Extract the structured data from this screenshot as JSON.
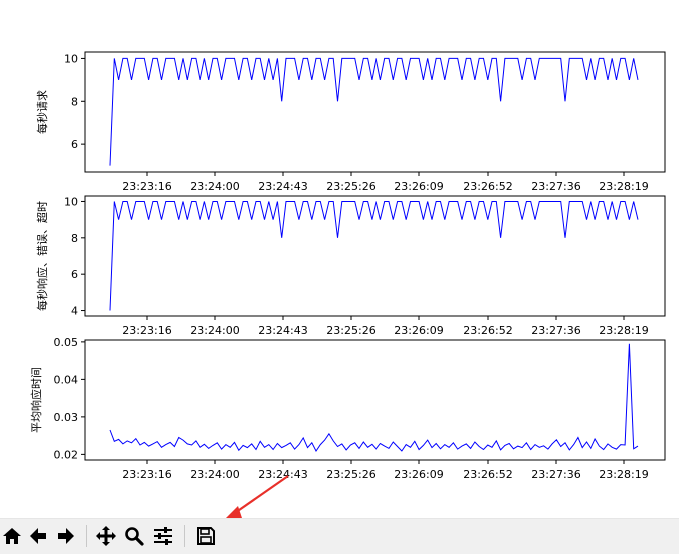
{
  "chart_data": [
    {
      "type": "line",
      "ylabel": "每秒请求",
      "yticks": [
        6,
        8,
        10
      ],
      "ylim": [
        4.7,
        10.3
      ],
      "x_tick_labels": [
        "23:23:16",
        "23:24:00",
        "23:24:43",
        "23:25:26",
        "23:26:09",
        "23:26:52",
        "23:27:36",
        "23:28:19"
      ],
      "color": "#0000ff",
      "series": [
        {
          "values": [
            5,
            10,
            9,
            10,
            10,
            9,
            10,
            10,
            10,
            9,
            10,
            10,
            9,
            10,
            10,
            10,
            9,
            10,
            9,
            10,
            10,
            9,
            10,
            9,
            10,
            10,
            9,
            10,
            10,
            10,
            9,
            10,
            10,
            9,
            10,
            10,
            9,
            10,
            9,
            10,
            8,
            10,
            10,
            10,
            9,
            10,
            10,
            9,
            10,
            10,
            9,
            10,
            10,
            8,
            10,
            10,
            10,
            10,
            9,
            10,
            10,
            9,
            10,
            9,
            10,
            10,
            9,
            10,
            10,
            9,
            10,
            10,
            10,
            9,
            10,
            9,
            10,
            10,
            9,
            10,
            10,
            10,
            9,
            10,
            10,
            9,
            10,
            10,
            9,
            10,
            10,
            8,
            10,
            10,
            10,
            10,
            9,
            10,
            10,
            9,
            10,
            10,
            10,
            10,
            10,
            10,
            8,
            10,
            10,
            10,
            10,
            9,
            10,
            9,
            10,
            10,
            9,
            10,
            9,
            10,
            10,
            9,
            10,
            9
          ]
        }
      ]
    },
    {
      "type": "line",
      "ylabel": "每秒响应、错误、超时",
      "yticks": [
        4,
        6,
        8,
        10
      ],
      "ylim": [
        3.7,
        10.3
      ],
      "x_tick_labels": [
        "23:23:16",
        "23:24:00",
        "23:24:43",
        "23:25:26",
        "23:26:09",
        "23:26:52",
        "23:27:36",
        "23:28:19"
      ],
      "color": "#0000ff",
      "series": [
        {
          "values": [
            4,
            10,
            9,
            10,
            10,
            9,
            10,
            10,
            10,
            9,
            10,
            10,
            9,
            10,
            10,
            10,
            9,
            10,
            9,
            10,
            10,
            9,
            10,
            9,
            10,
            10,
            9,
            10,
            10,
            10,
            9,
            10,
            10,
            9,
            10,
            10,
            9,
            10,
            9,
            10,
            8,
            10,
            10,
            10,
            9,
            10,
            10,
            9,
            10,
            10,
            9,
            10,
            10,
            8,
            10,
            10,
            10,
            10,
            9,
            10,
            10,
            9,
            10,
            9,
            10,
            10,
            9,
            10,
            10,
            9,
            10,
            10,
            10,
            9,
            10,
            9,
            10,
            10,
            9,
            10,
            10,
            10,
            9,
            10,
            10,
            9,
            10,
            10,
            9,
            10,
            10,
            8,
            10,
            10,
            10,
            10,
            9,
            10,
            10,
            9,
            10,
            10,
            10,
            10,
            10,
            10,
            8,
            10,
            10,
            10,
            10,
            9,
            10,
            9,
            10,
            10,
            9,
            10,
            9,
            10,
            10,
            9,
            10,
            9
          ]
        }
      ]
    },
    {
      "type": "line",
      "ylabel": "平均响应时间",
      "yticks": [
        0.02,
        0.03,
        0.04,
        0.05
      ],
      "ytick_labels": [
        "0.02",
        "0.03",
        "0.04",
        "0.05"
      ],
      "ylim": [
        0.0185,
        0.0505
      ],
      "x_tick_labels": [
        "23:23:16",
        "23:24:00",
        "23:24:43",
        "23:25:26",
        "23:26:09",
        "23:26:52",
        "23:27:36",
        "23:28:19"
      ],
      "color": "#0000ff",
      "series": [
        {
          "values": [
            0.0265,
            0.0235,
            0.024,
            0.0228,
            0.0236,
            0.0231,
            0.0242,
            0.0225,
            0.0232,
            0.0222,
            0.0228,
            0.0234,
            0.0219,
            0.0226,
            0.0232,
            0.0221,
            0.0245,
            0.0238,
            0.0228,
            0.0225,
            0.0236,
            0.0219,
            0.0227,
            0.0216,
            0.0224,
            0.0231,
            0.0214,
            0.0226,
            0.0219,
            0.0232,
            0.0211,
            0.0224,
            0.0218,
            0.0228,
            0.0213,
            0.0235,
            0.0219,
            0.0226,
            0.0213,
            0.0229,
            0.0218,
            0.0224,
            0.0231,
            0.0214,
            0.0226,
            0.0244,
            0.0218,
            0.0231,
            0.0209,
            0.0226,
            0.0238,
            0.0255,
            0.0236,
            0.0221,
            0.0228,
            0.0212,
            0.0225,
            0.0231,
            0.0216,
            0.0233,
            0.0219,
            0.0227,
            0.0214,
            0.0229,
            0.0222,
            0.0216,
            0.0233,
            0.0221,
            0.0209,
            0.0226,
            0.0219,
            0.0235,
            0.0213,
            0.0224,
            0.0238,
            0.0218,
            0.0229,
            0.0215,
            0.0226,
            0.0219,
            0.0231,
            0.0214,
            0.0222,
            0.0228,
            0.0216,
            0.0233,
            0.0221,
            0.0213,
            0.0225,
            0.0219,
            0.0236,
            0.0212,
            0.0224,
            0.0229,
            0.0215,
            0.0222,
            0.0218,
            0.0231,
            0.0213,
            0.0226,
            0.0219,
            0.0223,
            0.0214,
            0.0228,
            0.0239,
            0.0221,
            0.0231,
            0.0212,
            0.0226,
            0.0245,
            0.0218,
            0.0233,
            0.0216,
            0.0241,
            0.0222,
            0.0213,
            0.0228,
            0.0219,
            0.0214,
            0.0226,
            0.0225,
            0.0495,
            0.0215,
            0.0222
          ]
        }
      ]
    }
  ],
  "toolbar": {
    "buttons": [
      {
        "name": "home-button",
        "icon": "home-icon"
      },
      {
        "name": "back-button",
        "icon": "arrow-left-icon"
      },
      {
        "name": "forward-button",
        "icon": "arrow-right-icon"
      },
      {
        "name": "pan-button",
        "icon": "move-icon"
      },
      {
        "name": "zoom-button",
        "icon": "magnifier-icon"
      },
      {
        "name": "configure-subplots-button",
        "icon": "sliders-icon"
      },
      {
        "name": "save-button",
        "icon": "floppy-disk-icon"
      }
    ]
  },
  "annotation": {
    "color": "#e8302a",
    "points_to": "save-button"
  }
}
